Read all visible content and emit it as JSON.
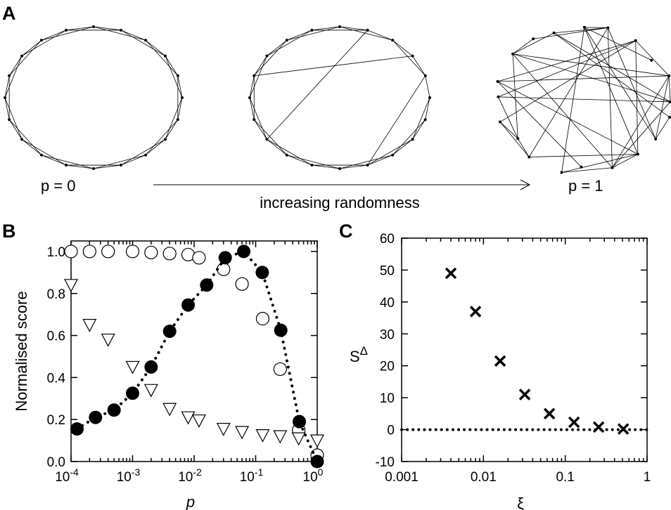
{
  "panel_a": {
    "label": "A",
    "p0_label": "p = 0",
    "p1_label": "p = 1",
    "arrow_label": "increasing randomness",
    "networks": [
      {
        "name": "regular",
        "nodes": 20,
        "k": 4,
        "rewired": [],
        "random": false
      },
      {
        "name": "small-world",
        "nodes": 20,
        "k": 4,
        "rewired": [
          [
            1,
            13
          ],
          [
            4,
            9
          ],
          [
            3,
            16
          ]
        ],
        "random": false
      },
      {
        "name": "random",
        "nodes": 20,
        "k": 4,
        "rewired": [],
        "random": true
      }
    ]
  },
  "chart_data": [
    {
      "panel": "B",
      "type": "scatter",
      "ylabel": "Normalised score",
      "xlabel": "p",
      "xscale": "log",
      "xlim": [
        0.0001,
        1
      ],
      "ylim": [
        0,
        1.05
      ],
      "x_tick_labels": [
        {
          "base": "10",
          "exp": "-4"
        },
        {
          "base": "10",
          "exp": "-3"
        },
        {
          "base": "10",
          "exp": "-2"
        },
        {
          "base": "10",
          "exp": "-1"
        },
        {
          "base": "10",
          "exp": "0"
        }
      ],
      "y_ticks": [
        "0.0",
        "0.2",
        "0.4",
        "0.6",
        "0.8",
        "1.0"
      ],
      "series": [
        {
          "marker": "open-circle",
          "x": [
            0.0001,
            0.0002,
            0.0004,
            0.001,
            0.002,
            0.004,
            0.008,
            0.012,
            0.03,
            0.06,
            0.13,
            0.25,
            0.5,
            1.0
          ],
          "y": [
            1.0,
            1.0,
            1.0,
            1.0,
            0.995,
            0.99,
            0.985,
            0.97,
            0.915,
            0.845,
            0.68,
            0.44,
            0.15,
            0.03
          ]
        },
        {
          "marker": "open-triangle-down",
          "x": [
            0.0001,
            0.0002,
            0.0004,
            0.001,
            0.002,
            0.004,
            0.008,
            0.012,
            0.03,
            0.06,
            0.13,
            0.25,
            0.5,
            1.0
          ],
          "y": [
            0.84,
            0.65,
            0.58,
            0.45,
            0.34,
            0.25,
            0.21,
            0.195,
            0.155,
            0.14,
            0.125,
            0.12,
            0.11,
            0.1
          ]
        },
        {
          "marker": "filled-circle",
          "line": "dotted",
          "x": [
            0.000125,
            0.00025,
            0.0005,
            0.001,
            0.002,
            0.004,
            0.008,
            0.016,
            0.032,
            0.064,
            0.128,
            0.256,
            0.512,
            1.0
          ],
          "y": [
            0.155,
            0.21,
            0.245,
            0.325,
            0.45,
            0.62,
            0.745,
            0.84,
            0.97,
            1.0,
            0.9,
            0.625,
            0.19,
            0.0
          ]
        }
      ]
    },
    {
      "panel": "C",
      "type": "scatter",
      "ylabel_base": "S",
      "ylabel_sup": "Δ",
      "xlabel": "ξ",
      "xscale": "log",
      "xlim": [
        0.001,
        1
      ],
      "ylim": [
        -10,
        60
      ],
      "x_ticks": [
        "0.001",
        "0.01",
        "0.1",
        "1"
      ],
      "y_ticks": [
        "-10",
        "0",
        "10",
        "20",
        "30",
        "40",
        "50",
        "60"
      ],
      "series": [
        {
          "marker": "cross",
          "x": [
            0.004,
            0.008,
            0.016,
            0.032,
            0.064,
            0.128,
            0.256,
            0.512
          ],
          "y": [
            49,
            37,
            21.5,
            11,
            5,
            2.3,
            0.8,
            0.2
          ]
        }
      ],
      "reference_line": {
        "y": 0,
        "style": "dotted"
      }
    }
  ]
}
